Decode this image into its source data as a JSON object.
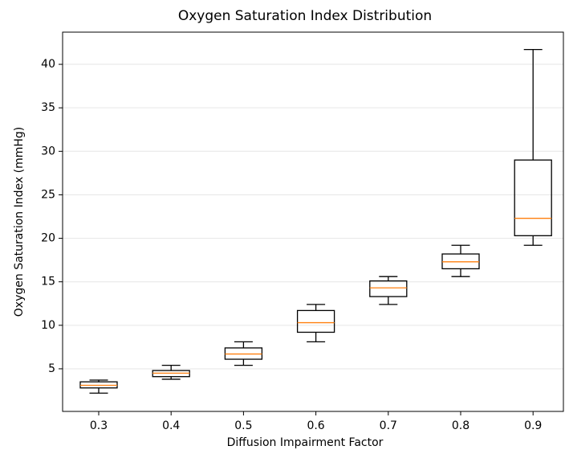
{
  "chart_data": {
    "type": "box",
    "title": "Oxygen Saturation Index Distribution",
    "x_label": "Diffusion Impairment Factor",
    "y_label": "Oxygen Saturation Index (mmHg)",
    "categories": [
      "0.3",
      "0.4",
      "0.5",
      "0.6",
      "0.7",
      "0.8",
      "0.9"
    ],
    "whisker_low": [
      2.2,
      3.8,
      5.4,
      8.1,
      12.4,
      15.6,
      19.2
    ],
    "q1": [
      2.8,
      4.1,
      6.1,
      9.2,
      13.3,
      16.5,
      20.3
    ],
    "median": [
      3.1,
      4.5,
      6.7,
      10.3,
      14.3,
      17.3,
      22.3
    ],
    "q3": [
      3.5,
      4.8,
      7.4,
      11.7,
      15.1,
      18.2,
      29.0
    ],
    "whisker_high": [
      3.7,
      5.4,
      8.1,
      12.4,
      15.6,
      19.2,
      41.7
    ],
    "box_color": "#000000",
    "median_color": "#ff7f0e",
    "ylim": [
      0.1,
      43.7
    ],
    "yticks": [
      5,
      10,
      15,
      20,
      25,
      30,
      35,
      40
    ],
    "grid": true
  }
}
